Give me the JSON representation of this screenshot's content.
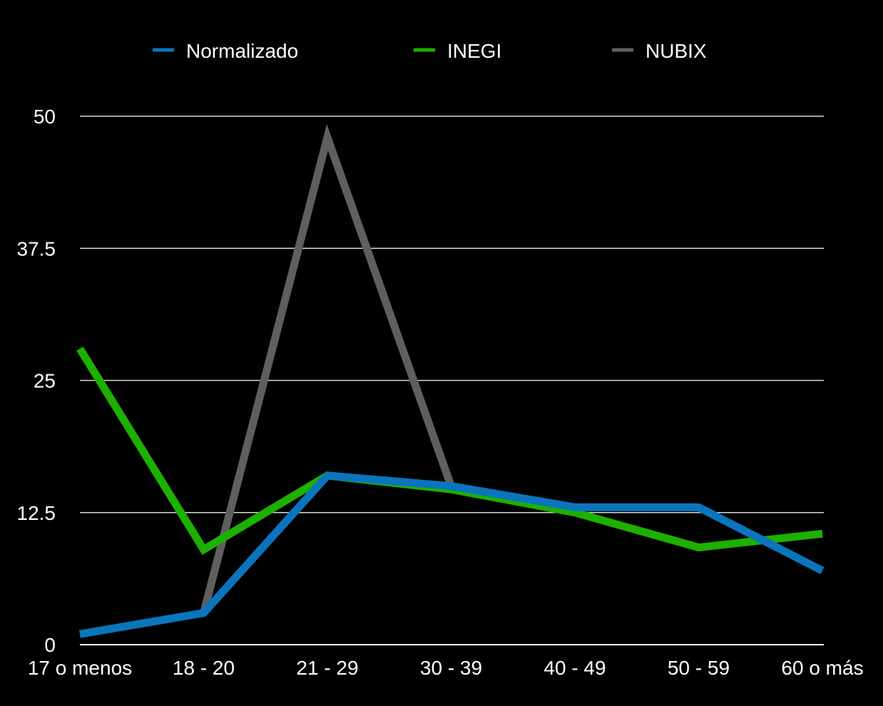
{
  "chart_data": {
    "type": "line",
    "categories": [
      "17 o menos",
      "18 - 20",
      "21 - 29",
      "30 - 39",
      "40 - 49",
      "50 - 59",
      "60 o más"
    ],
    "series": [
      {
        "name": "Normalizado",
        "color": "#0a75bd",
        "values": [
          1,
          3,
          16,
          15,
          13,
          13,
          7
        ]
      },
      {
        "name": "INEGI",
        "color": "#1db000",
        "values": [
          28,
          9,
          16,
          14.7,
          12.5,
          9.2,
          10.5
        ]
      },
      {
        "name": "NUBIX",
        "color": "#5f5f5f",
        "values": [
          null,
          3,
          48,
          15,
          null,
          null,
          null
        ]
      }
    ],
    "yticks": [
      "0",
      "12.5",
      "25",
      "37.5",
      "50"
    ],
    "ylim": [
      0,
      50
    ],
    "grid": true,
    "legend_position": "top",
    "title": "",
    "xlabel": "",
    "ylabel": ""
  }
}
